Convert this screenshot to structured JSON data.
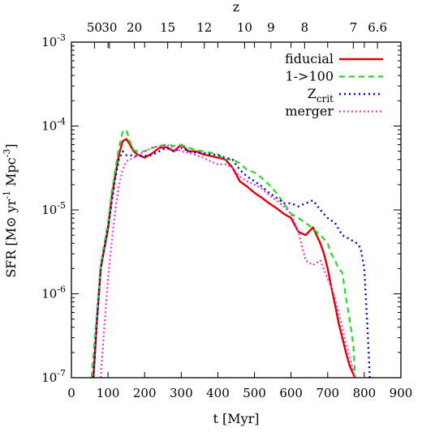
{
  "chart_data": {
    "type": "line",
    "xlabel": "t [Myr]",
    "ylabel": "SFR [M⊙ yr-1 Mpc-3]",
    "top_axis_label": "z",
    "xlim": [
      0,
      900
    ],
    "ylim": [
      1e-07,
      0.001
    ],
    "y_scale": "log",
    "grid": false,
    "legend_position": "top-right",
    "x_ticks": [
      0,
      100,
      200,
      300,
      400,
      500,
      600,
      700,
      800,
      900
    ],
    "y_ticks": [
      {
        "value": 1e-07,
        "base": "10",
        "exp": "-7"
      },
      {
        "value": 1e-06,
        "base": "10",
        "exp": "-6"
      },
      {
        "value": 1e-05,
        "base": "10",
        "exp": "-5"
      },
      {
        "value": 0.0001,
        "base": "10",
        "exp": "-4"
      },
      {
        "value": 0.001,
        "base": "10",
        "exp": "-3"
      }
    ],
    "top_ticks": [
      {
        "label": "50",
        "t": 63
      },
      {
        "label": "30",
        "t": 104
      },
      {
        "label": "20",
        "t": 172
      },
      {
        "label": "15",
        "t": 263
      },
      {
        "label": "12",
        "t": 363
      },
      {
        "label": "10",
        "t": 473
      },
      {
        "label": "9",
        "t": 545
      },
      {
        "label": "8",
        "t": 637
      },
      {
        "label": "7",
        "t": 770
      },
      {
        "label": "6.6",
        "t": 836
      }
    ],
    "series": [
      {
        "name": "fiducial",
        "legend_main": "fiducial",
        "legend_sub": "",
        "color": "#dd0000",
        "dash": "",
        "width": 2.4,
        "x": [
          60,
          70,
          80,
          90,
          100,
          110,
          120,
          130,
          140,
          150,
          160,
          170,
          180,
          190,
          200,
          220,
          240,
          260,
          280,
          300,
          320,
          340,
          360,
          380,
          400,
          420,
          440,
          460,
          480,
          500,
          520,
          540,
          560,
          580,
          600,
          620,
          640,
          660,
          670,
          680,
          690,
          700,
          710,
          720,
          730,
          740,
          750,
          760,
          770,
          775
        ],
        "y": [
          1e-07,
          5e-07,
          2e-06,
          3.5e-06,
          6e-06,
          1.4e-05,
          2.6e-05,
          4.6e-05,
          6.6e-05,
          7e-05,
          6e-05,
          5e-05,
          4.6e-05,
          4.4e-05,
          4.2e-05,
          4.7e-05,
          5.5e-05,
          5.6e-05,
          5e-05,
          6e-05,
          5e-05,
          5e-05,
          4.6e-05,
          4.4e-05,
          4.2e-05,
          4e-05,
          3.2e-05,
          2.2e-05,
          1.9e-05,
          1.6e-05,
          1.4e-05,
          1.2e-05,
          1.05e-05,
          9e-06,
          8e-06,
          5.5e-06,
          5e-06,
          6.2e-06,
          5e-06,
          4e-06,
          3e-06,
          2e-06,
          1.2e-06,
          7.5e-07,
          4.5e-07,
          3e-07,
          2e-07,
          1.4e-07,
          1.1e-07,
          1e-07
        ]
      },
      {
        "name": "1->100",
        "legend_main": "1->100",
        "legend_sub": "",
        "color": "#22dd22",
        "dash": "7,5",
        "width": 2.2,
        "x": [
          55,
          70,
          80,
          90,
          100,
          110,
          120,
          130,
          140,
          150,
          160,
          170,
          180,
          200,
          220,
          240,
          260,
          280,
          300,
          320,
          340,
          360,
          380,
          400,
          420,
          440,
          460,
          480,
          500,
          520,
          540,
          560,
          580,
          600,
          620,
          640,
          660,
          680,
          690,
          700,
          710,
          720,
          730,
          740,
          750,
          760,
          770,
          775
        ],
        "y": [
          1e-07,
          6e-07,
          2.2e-06,
          4e-06,
          7e-06,
          1.6e-05,
          3e-05,
          5.5e-05,
          8.5e-05,
          9e-05,
          6.5e-05,
          5.2e-05,
          5e-05,
          5e-05,
          5.5e-05,
          5.8e-05,
          6e-05,
          5.8e-05,
          6e-05,
          5.5e-05,
          5.2e-05,
          5e-05,
          4.8e-05,
          4.6e-05,
          4e-05,
          4e-05,
          3.6e-05,
          3e-05,
          2.8e-05,
          2.4e-05,
          2e-05,
          1.6e-05,
          1.2e-05,
          9e-06,
          8e-06,
          7e-06,
          6e-06,
          5e-06,
          4.5e-06,
          4e-06,
          3e-06,
          2.5e-06,
          2e-06,
          1.8e-06,
          9e-07,
          5e-07,
          2.5e-07,
          1e-07
        ]
      },
      {
        "name": "Zcrit",
        "legend_main": "Z",
        "legend_sub": "crit",
        "color": "#0000cc",
        "dash": "2,4",
        "width": 2.4,
        "x": [
          60,
          70,
          80,
          90,
          100,
          110,
          120,
          130,
          140,
          150,
          160,
          170,
          180,
          200,
          220,
          240,
          260,
          280,
          300,
          320,
          340,
          360,
          380,
          400,
          420,
          440,
          460,
          480,
          500,
          520,
          540,
          560,
          580,
          600,
          620,
          640,
          660,
          680,
          700,
          720,
          740,
          760,
          780,
          790,
          800,
          810,
          815
        ],
        "y": [
          1e-07,
          5e-07,
          2e-06,
          3.5e-06,
          6e-06,
          1.2e-05,
          2.4e-05,
          4e-05,
          5e-05,
          4.5e-05,
          4.5e-05,
          4.4e-05,
          4.4e-05,
          4.4e-05,
          4.5e-05,
          5e-05,
          5.5e-05,
          5e-05,
          5.5e-05,
          5e-05,
          4.8e-05,
          4.8e-05,
          4.6e-05,
          4.5e-05,
          4.2e-05,
          4e-05,
          3e-05,
          2.5e-05,
          2.2e-05,
          1.9e-05,
          1.6e-05,
          1.4e-05,
          1.2e-05,
          1.2e-05,
          1.1e-05,
          1.2e-05,
          1.3e-05,
          1e-05,
          8e-06,
          7e-06,
          5e-06,
          4.5e-06,
          4e-06,
          3.5e-06,
          2e-06,
          3e-07,
          1e-07
        ]
      },
      {
        "name": "merger",
        "legend_main": "merger",
        "legend_sub": "",
        "color": "#ee33dd",
        "dash": "2,3",
        "width": 2.2,
        "x": [
          80,
          90,
          100,
          110,
          120,
          130,
          140,
          150,
          160,
          170,
          180,
          200,
          220,
          240,
          260,
          280,
          300,
          320,
          340,
          360,
          380,
          400,
          420,
          440,
          460,
          480,
          500,
          520,
          540,
          560,
          580,
          600,
          620,
          640,
          660,
          680,
          700,
          710,
          720,
          730,
          740,
          750,
          760,
          770,
          775
        ],
        "y": [
          1e-07,
          4e-07,
          1.5e-06,
          4e-06,
          1e-05,
          2e-05,
          3e-05,
          3.8e-05,
          4e-05,
          4.2e-05,
          4.4e-05,
          5e-05,
          5.5e-05,
          5.8e-05,
          6e-05,
          5.5e-05,
          5e-05,
          4.8e-05,
          4.5e-05,
          4.2e-05,
          3.8e-05,
          3.5e-05,
          3.5e-05,
          3.2e-05,
          2.5e-05,
          2.2e-05,
          2e-05,
          1.8e-05,
          1.5e-05,
          1.3e-05,
          1.1e-05,
          9e-06,
          5.5e-06,
          2.5e-06,
          2.2e-06,
          2.5e-06,
          1.5e-06,
          1.2e-06,
          9e-07,
          6e-07,
          4e-07,
          2.5e-07,
          1.8e-07,
          1.2e-07,
          1e-07
        ]
      }
    ]
  }
}
